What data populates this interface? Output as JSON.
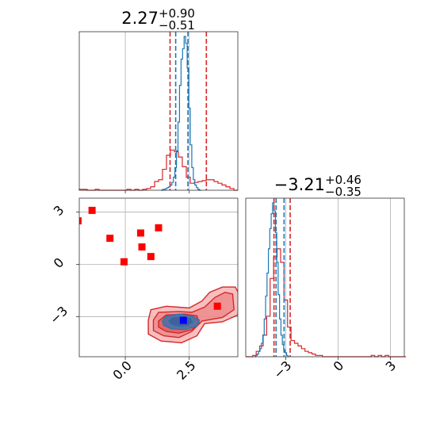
{
  "chart_data": {
    "type": "corner",
    "param1": {
      "title_value": "2.27",
      "title_plus": "+0.90",
      "title_minus": "−0.51",
      "range": [
        -1.8,
        4.4
      ],
      "ticks": [
        0.0,
        2.5
      ],
      "tick_labels": [
        "0.0",
        "2.5"
      ],
      "red_quantiles": [
        1.75,
        3.17
      ],
      "blue_quantiles": [
        1.97,
        2.45
      ],
      "blue_hist": {
        "edges_start": 1.4,
        "bin_width": 0.06,
        "counts": [
          0,
          1,
          1,
          2,
          3,
          4,
          6,
          9,
          15,
          26,
          45,
          78,
          120,
          150,
          162,
          176,
          168,
          140,
          94,
          52,
          26,
          12,
          6,
          3,
          1,
          0
        ]
      },
      "red_hist": {
        "edges_start": -1.8,
        "bin_width": 0.155,
        "counts": [
          1,
          1,
          0,
          0,
          1,
          0,
          0,
          0,
          0,
          0,
          0,
          0,
          1,
          0,
          1,
          0,
          1,
          2,
          4,
          10,
          12,
          24,
          40,
          46,
          44,
          38,
          27,
          15,
          8,
          9,
          10,
          11,
          12,
          12,
          10,
          8,
          6,
          4,
          2,
          0
        ]
      }
    },
    "param2": {
      "title_value": "−3.21",
      "title_plus": "+0.46",
      "title_minus": "−0.35",
      "range": [
        -5.3,
        3.8
      ],
      "ticks": [
        -3,
        0,
        3
      ],
      "tick_labels": [
        "−3",
        "0",
        "3"
      ],
      "red_quantiles": [
        -3.68,
        -2.75
      ],
      "blue_quantiles": [
        -3.56,
        -3.1
      ],
      "blue_hist": {
        "edges_start": -4.8,
        "bin_width": 0.08,
        "counts": [
          0,
          1,
          2,
          4,
          6,
          10,
          16,
          28,
          45,
          62,
          80,
          95,
          106,
          114,
          108,
          92,
          70,
          46,
          28,
          16,
          9,
          5,
          3,
          1,
          0
        ]
      },
      "red_hist": {
        "edges_start": -5.3,
        "bin_width": 0.2,
        "counts": [
          0,
          0,
          1,
          4,
          8,
          16,
          30,
          58,
          74,
          80,
          70,
          42,
          22,
          12,
          10,
          8,
          6,
          4,
          3,
          2,
          1,
          1,
          0,
          0,
          0,
          0,
          0,
          0,
          0,
          0,
          0,
          0,
          0,
          0,
          0,
          0,
          1,
          0,
          1,
          0,
          1,
          0,
          0,
          0,
          0,
          0
        ]
      }
    },
    "scatter_2d": {
      "red_squares": [
        {
          "x": -1.85,
          "y": 2.5
        },
        {
          "x": -1.3,
          "y": 3.1
        },
        {
          "x": -0.6,
          "y": 1.5
        },
        {
          "x": -0.05,
          "y": 0.15
        },
        {
          "x": 0.6,
          "y": 1.8
        },
        {
          "x": 0.65,
          "y": 1.0
        },
        {
          "x": 1.0,
          "y": 0.45
        },
        {
          "x": 1.3,
          "y": 2.1
        },
        {
          "x": 3.6,
          "y": -2.4
        }
      ],
      "blue_square": {
        "x": 2.27,
        "y": -3.21
      }
    },
    "red_contours": [
      [
        [
          0.9,
          -3.2
        ],
        [
          1.0,
          -2.6
        ],
        [
          1.6,
          -2.4
        ],
        [
          2.5,
          -2.5
        ],
        [
          3.0,
          -2.1
        ],
        [
          3.3,
          -1.6
        ],
        [
          3.8,
          -1.3
        ],
        [
          4.3,
          -1.3
        ],
        [
          4.45,
          -1.7
        ],
        [
          4.4,
          -2.9
        ],
        [
          3.8,
          -3.3
        ],
        [
          3.1,
          -3.4
        ],
        [
          2.8,
          -4.1
        ],
        [
          2.2,
          -4.5
        ],
        [
          1.4,
          -4.4
        ],
        [
          0.9,
          -4.0
        ]
      ],
      [
        [
          1.1,
          -3.2
        ],
        [
          1.3,
          -2.75
        ],
        [
          2.1,
          -2.7
        ],
        [
          2.6,
          -2.75
        ],
        [
          3.1,
          -2.45
        ],
        [
          3.5,
          -1.9
        ],
        [
          3.9,
          -1.6
        ],
        [
          4.2,
          -1.7
        ],
        [
          4.25,
          -2.6
        ],
        [
          3.8,
          -3.05
        ],
        [
          3.0,
          -3.25
        ],
        [
          2.6,
          -3.85
        ],
        [
          2.1,
          -4.2
        ],
        [
          1.5,
          -4.1
        ],
        [
          1.1,
          -3.8
        ]
      ],
      [
        [
          1.3,
          -3.25
        ],
        [
          1.6,
          -2.9
        ],
        [
          2.3,
          -2.85
        ],
        [
          2.8,
          -2.95
        ],
        [
          2.9,
          -3.4
        ],
        [
          2.6,
          -3.75
        ],
        [
          2.1,
          -3.95
        ],
        [
          1.6,
          -3.85
        ],
        [
          1.3,
          -3.6
        ]
      ]
    ],
    "blue_contours": [
      [
        [
          1.45,
          -3.25
        ],
        [
          1.6,
          -2.95
        ],
        [
          2.1,
          -2.85
        ],
        [
          2.6,
          -2.95
        ],
        [
          2.9,
          -3.2
        ],
        [
          2.8,
          -3.55
        ],
        [
          2.3,
          -3.75
        ],
        [
          1.8,
          -3.7
        ],
        [
          1.5,
          -3.5
        ]
      ],
      [
        [
          1.7,
          -3.25
        ],
        [
          1.85,
          -3.05
        ],
        [
          2.2,
          -3.0
        ],
        [
          2.55,
          -3.1
        ],
        [
          2.65,
          -3.3
        ],
        [
          2.45,
          -3.5
        ],
        [
          2.1,
          -3.55
        ],
        [
          1.8,
          -3.45
        ]
      ]
    ],
    "colors": {
      "red": "#d62728",
      "red_fill_light": "#f4a9aa",
      "red_fill_dark": "#e0565a",
      "blue": "#1f77b4",
      "blue_fill": "#4a6fa8",
      "grid": "#b0b0b0"
    }
  }
}
